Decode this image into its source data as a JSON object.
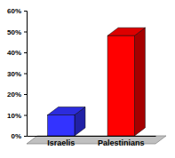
{
  "chart_data": {
    "type": "bar",
    "categories": [
      "Israelis",
      "Palestinians"
    ],
    "values": [
      10,
      48
    ],
    "colors": [
      "#3333ff",
      "#ff0000"
    ],
    "ylim": [
      0,
      60
    ],
    "yticks": [
      {
        "value": 0,
        "label": "0%"
      },
      {
        "value": 10,
        "label": "10%"
      },
      {
        "value": 20,
        "label": "20%"
      },
      {
        "value": 30,
        "label": "30%"
      },
      {
        "value": 40,
        "label": "40%"
      },
      {
        "value": 50,
        "label": "50%"
      },
      {
        "value": 60,
        "label": "60%"
      }
    ],
    "grid": false
  }
}
